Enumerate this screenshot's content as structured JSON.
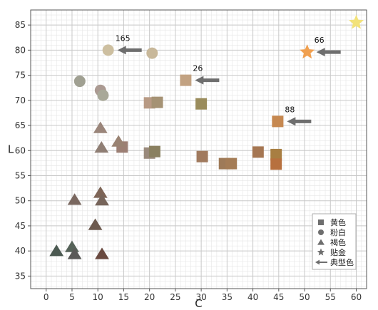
{
  "chart_data": {
    "type": "scatter",
    "title": "",
    "xlabel": "C",
    "ylabel": "L",
    "xlim": [
      -3,
      62
    ],
    "ylim": [
      32.5,
      88
    ],
    "xticks": [
      0,
      5,
      10,
      15,
      20,
      25,
      30,
      35,
      40,
      45,
      50,
      55,
      60
    ],
    "yticks": [
      35,
      40,
      45,
      50,
      55,
      60,
      65,
      70,
      75,
      80,
      85
    ],
    "grid": true,
    "minor_grid": true,
    "legend_position": "bottom-right",
    "legend": [
      {
        "label": "黄色",
        "shape": "square"
      },
      {
        "label": "粉白",
        "shape": "circle"
      },
      {
        "label": "褐色",
        "shape": "triangle"
      },
      {
        "label": "贴金",
        "shape": "star"
      },
      {
        "label": "典型色",
        "shape": "arrow"
      }
    ],
    "series": [
      {
        "name": "黄色",
        "marker": "square",
        "points": [
          {
            "x": 20,
            "y": 69.5,
            "color": "#b89a84"
          },
          {
            "x": 21.5,
            "y": 69.6,
            "color": "#a59274"
          },
          {
            "x": 27,
            "y": 74,
            "color": "#c2a282"
          },
          {
            "x": 30,
            "y": 69.3,
            "color": "#9a8c5c"
          },
          {
            "x": 20,
            "y": 59.5,
            "color": "#9a8a7c"
          },
          {
            "x": 21,
            "y": 59.8,
            "color": "#8a8060"
          },
          {
            "x": 30.2,
            "y": 58.8,
            "color": "#a07a5e"
          },
          {
            "x": 34.5,
            "y": 57.4,
            "color": "#9e7a58"
          },
          {
            "x": 35.8,
            "y": 57.4,
            "color": "#a47c56"
          },
          {
            "x": 41,
            "y": 59.7,
            "color": "#a57652"
          },
          {
            "x": 44.5,
            "y": 59.2,
            "color": "#a87e42"
          },
          {
            "x": 44.5,
            "y": 57.3,
            "color": "#b7703e"
          },
          {
            "x": 44.8,
            "y": 65.8,
            "color": "#c68850"
          },
          {
            "x": 14.7,
            "y": 60.7,
            "color": "#9c7f74"
          }
        ]
      },
      {
        "name": "粉白",
        "marker": "circle",
        "points": [
          {
            "x": 12,
            "y": 80,
            "color": "#cdbfa0"
          },
          {
            "x": 20.5,
            "y": 79.4,
            "color": "#c8b89a"
          },
          {
            "x": 6.5,
            "y": 73.8,
            "color": "#a0a092"
          },
          {
            "x": 10.5,
            "y": 72,
            "color": "#ab9a92"
          },
          {
            "x": 11,
            "y": 71,
            "color": "#a8a898"
          }
        ]
      },
      {
        "name": "褐色",
        "marker": "triangle",
        "points": [
          {
            "x": 10.5,
            "y": 64.5,
            "color": "#9a857a"
          },
          {
            "x": 14,
            "y": 61.8,
            "color": "#998272"
          },
          {
            "x": 10.7,
            "y": 60.6,
            "color": "#8f7e74"
          },
          {
            "x": 10.5,
            "y": 51.6,
            "color": "#7d6456"
          },
          {
            "x": 10.8,
            "y": 50.1,
            "color": "#76645a"
          },
          {
            "x": 5.5,
            "y": 50.2,
            "color": "#7a6860"
          },
          {
            "x": 9.5,
            "y": 45.2,
            "color": "#6d5a4e"
          },
          {
            "x": 2,
            "y": 40,
            "color": "#4c5a52"
          },
          {
            "x": 5,
            "y": 40.8,
            "color": "#556258"
          },
          {
            "x": 5.5,
            "y": 39.4,
            "color": "#5a5a58"
          },
          {
            "x": 10.8,
            "y": 39.4,
            "color": "#6a4a40"
          }
        ]
      },
      {
        "name": "贴金",
        "marker": "star",
        "points": [
          {
            "x": 60,
            "y": 85.5,
            "color": "#f2e27a"
          },
          {
            "x": 50.5,
            "y": 79.6,
            "color": "#f0a050"
          }
        ]
      }
    ],
    "typical_colors": [
      {
        "label": "165",
        "x": 12,
        "y": 80
      },
      {
        "label": "26",
        "x": 27,
        "y": 74
      },
      {
        "label": "88",
        "x": 44.8,
        "y": 65.8
      },
      {
        "label": "66",
        "x": 50.5,
        "y": 79.6
      }
    ],
    "axis_color": "#555555",
    "grid_major_color": "#c8c8c8",
    "grid_minor_color": "#e6e6e6",
    "arrow_color": "#6e6e6e",
    "legend_marker_color": "#6e6e6e"
  }
}
